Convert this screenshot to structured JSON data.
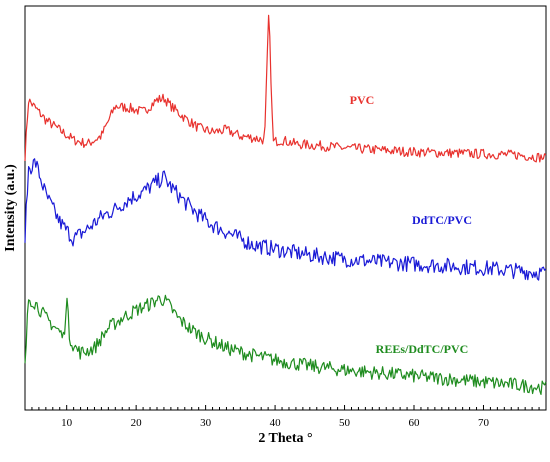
{
  "chart_data": {
    "type": "line",
    "xlabel": "2  Theta °",
    "ylabel": "Intensity   (a.u.)",
    "xlim": [
      4,
      79
    ],
    "x_ticks": [
      10,
      20,
      30,
      40,
      50,
      60,
      70
    ],
    "x_tick_labels": [
      "10",
      "20",
      "30",
      "40",
      "50",
      "60",
      "70"
    ],
    "grid": false,
    "legend": "inline labels next to each curve",
    "y_ticks_shown": false,
    "series": [
      {
        "name": "PVC",
        "color": "#e8322e",
        "x": [
          4,
          4.5,
          5.5,
          7,
          9,
          11,
          13,
          15,
          17,
          19,
          21,
          23,
          24,
          25,
          27,
          29,
          31,
          33,
          35,
          37,
          38.5,
          39.1,
          39.7,
          41,
          43,
          45,
          47,
          50,
          55,
          60,
          65,
          70,
          75,
          79
        ],
        "y": [
          2,
          58,
          50,
          38,
          28,
          18,
          14,
          22,
          52,
          50,
          46,
          58,
          60,
          52,
          40,
          30,
          26,
          28,
          22,
          20,
          18,
          148,
          16,
          18,
          14,
          13,
          12,
          10,
          8,
          6,
          5,
          4,
          3,
          0
        ],
        "noise": 5
      },
      {
        "name": "DdTC/PVC",
        "color": "#1a1ad6",
        "x": [
          4,
          4.5,
          5.5,
          7,
          9,
          11,
          13,
          15,
          17,
          19,
          21,
          23,
          24,
          25,
          27,
          29,
          31,
          33,
          35,
          37,
          40,
          43,
          46,
          50,
          55,
          60,
          65,
          70,
          75,
          79
        ],
        "y": [
          52,
          118,
          125,
          92,
          65,
          48,
          58,
          70,
          78,
          88,
          95,
          105,
          110,
          100,
          85,
          72,
          62,
          55,
          48,
          42,
          38,
          34,
          31,
          28,
          25,
          23,
          21,
          19,
          16,
          14
        ],
        "noise": 8
      },
      {
        "name": "REEs/DdTC/PVC",
        "color": "#1f8c1f",
        "x": [
          4,
          4.5,
          5.5,
          7,
          9,
          9.6,
          10.0,
          10.4,
          11,
          12,
          14,
          16,
          18,
          20,
          22,
          23.5,
          24.5,
          26,
          28,
          30,
          33,
          36,
          40,
          45,
          50,
          55,
          60,
          65,
          70,
          75,
          79
        ],
        "y": [
          30,
          100,
          95,
          80,
          66,
          60,
          102,
          62,
          52,
          45,
          50,
          70,
          80,
          88,
          94,
          100,
          95,
          80,
          68,
          60,
          50,
          44,
          38,
          32,
          28,
          25,
          22,
          19,
          16,
          13,
          10
        ],
        "noise": 7
      }
    ],
    "annotations": [
      "PVC",
      "DdTC/PVC",
      "REEs/DdTC/PVC"
    ]
  }
}
